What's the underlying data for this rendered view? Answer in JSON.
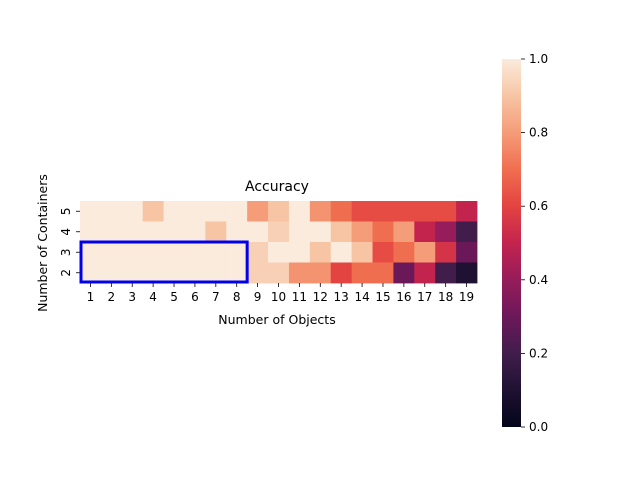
{
  "chart_data": {
    "type": "heatmap",
    "title": "Accuracy",
    "xlabel": "Number of Objects",
    "ylabel": "Number of Containers",
    "x": [
      1,
      2,
      3,
      4,
      5,
      6,
      7,
      8,
      9,
      10,
      11,
      12,
      13,
      14,
      15,
      16,
      17,
      18,
      19
    ],
    "y": [
      5,
      4,
      3,
      2
    ],
    "values": [
      [
        1.0,
        1.0,
        1.0,
        0.9,
        1.0,
        1.0,
        1.0,
        1.0,
        0.8,
        0.9,
        1.0,
        0.78,
        0.7,
        0.62,
        0.62,
        0.62,
        0.62,
        0.62,
        0.5
      ],
      [
        1.0,
        1.0,
        1.0,
        1.0,
        1.0,
        1.0,
        0.9,
        1.0,
        1.0,
        0.93,
        1.0,
        1.0,
        0.9,
        0.8,
        0.7,
        0.8,
        0.5,
        0.4,
        0.2
      ],
      [
        1.0,
        1.0,
        1.0,
        1.0,
        1.0,
        1.0,
        1.0,
        1.0,
        0.93,
        1.0,
        1.0,
        0.9,
        1.0,
        0.9,
        0.62,
        0.7,
        0.8,
        0.55,
        0.3
      ],
      [
        1.0,
        1.0,
        1.0,
        1.0,
        1.0,
        1.0,
        1.0,
        1.0,
        0.93,
        0.93,
        0.78,
        0.78,
        0.6,
        0.7,
        0.7,
        0.3,
        0.5,
        0.2,
        0.1
      ]
    ],
    "zlim": [
      0,
      1
    ],
    "colorbar_ticks": [
      "0.0",
      "0.2",
      "0.4",
      "0.6",
      "0.8",
      "1.0"
    ],
    "colormap": "rocket",
    "highlight": {
      "x_from": 1,
      "x_to": 8,
      "y_from": 3,
      "y_to": 2,
      "color": "#0000ee"
    }
  }
}
